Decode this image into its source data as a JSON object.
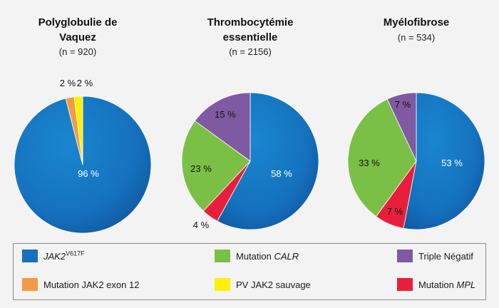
{
  "chart_data": [
    {
      "type": "pie",
      "title_line1": "Polyglobulie de",
      "title_line2": "Vaquez",
      "subtitle": "(n = 920)",
      "slices": [
        {
          "key": "jak2",
          "value": 96,
          "label": "96 %"
        },
        {
          "key": "exon12",
          "value": 2,
          "label": "2 %"
        },
        {
          "key": "sauvage",
          "value": 2,
          "label": "2 %"
        }
      ]
    },
    {
      "type": "pie",
      "title_line1": "Thrombocytémie",
      "title_line2": "essentielle",
      "subtitle": "(n = 2156)",
      "slices": [
        {
          "key": "jak2",
          "value": 58,
          "label": "58 %"
        },
        {
          "key": "mpl",
          "value": 4,
          "label": "4 %"
        },
        {
          "key": "calr",
          "value": 23,
          "label": "23 %"
        },
        {
          "key": "triple",
          "value": 15,
          "label": "15 %"
        }
      ]
    },
    {
      "type": "pie",
      "title_line1": "Myélofibrose",
      "title_line2": "",
      "subtitle": "(n = 534)",
      "slices": [
        {
          "key": "jak2",
          "value": 53,
          "label": "53 %"
        },
        {
          "key": "mpl",
          "value": 7,
          "label": "7 %"
        },
        {
          "key": "calr",
          "value": 33,
          "label": "33 %"
        },
        {
          "key": "triple",
          "value": 7,
          "label": "7 %"
        }
      ]
    }
  ],
  "colors": {
    "jak2": "#1571be",
    "jak2_dark": "#0f4f97",
    "exon12": "#f39a45",
    "sauvage": "#fdf000",
    "calr": "#7ac046",
    "mpl": "#e81f3c",
    "triple": "#7f5aa2"
  },
  "legend": {
    "jak2": {
      "main": "JAK2",
      "sup": "V617F"
    },
    "exon12": {
      "text": "Mutation JAK2 exon 12"
    },
    "calr": {
      "prefix": "Mutation ",
      "italic": "CALR"
    },
    "sauvage": {
      "text": "PV JAK2 sauvage"
    },
    "triple": {
      "text": "Triple Négatif"
    },
    "mpl": {
      "prefix": "Mutation ",
      "italic": "MPL"
    }
  }
}
